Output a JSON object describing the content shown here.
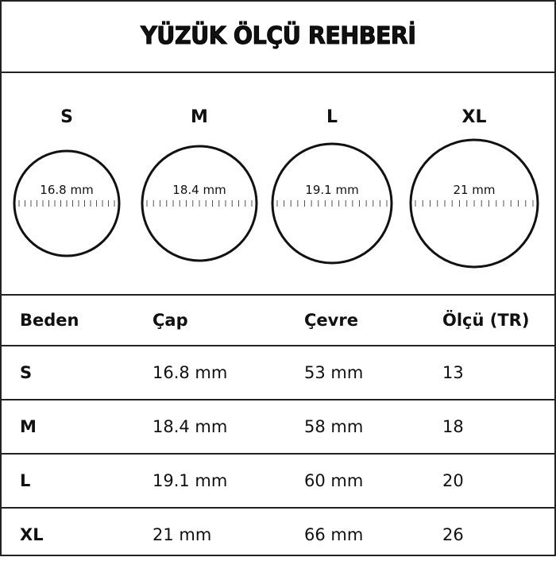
{
  "title": "YÜZÜK ÖLÇÜ REHBERİ",
  "rings": [
    {
      "size": "S",
      "diameter_label": "16.8 mm",
      "diameter_mm": 16.8
    },
    {
      "size": "M",
      "diameter_label": "18.4 mm",
      "diameter_mm": 18.4
    },
    {
      "size": "L",
      "diameter_label": "19.1 mm",
      "diameter_mm": 19.1
    },
    {
      "size": "XL",
      "diameter_label": "21 mm",
      "diameter_mm": 21
    }
  ],
  "table": {
    "headers": [
      "Beden",
      "Çap",
      "Çevre",
      "Ölçü (TR)"
    ],
    "rows": [
      [
        "S",
        "16.8 mm",
        "53 mm",
        "13"
      ],
      [
        "M",
        "18.4 mm",
        "58 mm",
        "18"
      ],
      [
        "L",
        "19.1 mm",
        "60 mm",
        "20"
      ],
      [
        "XL",
        "21 mm",
        "66 mm",
        "26"
      ]
    ]
  },
  "colors": {
    "ink": "#111111",
    "border": "#222222",
    "background": "#ffffff"
  }
}
